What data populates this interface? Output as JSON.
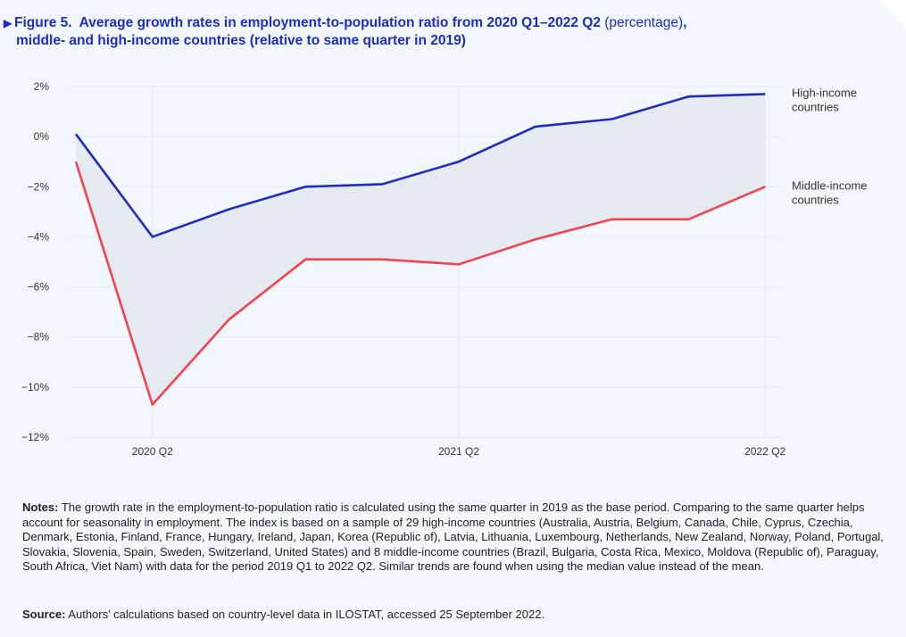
{
  "figure": {
    "number": "Figure 5.",
    "title": "Average growth rates in employment-to-population ratio from 2020 Q1–2022 Q2",
    "unit": "(percentage)",
    "subtitle": "middle- and high-income countries (relative to same quarter in 2019)"
  },
  "chart_data": {
    "type": "line",
    "title": "Average growth rates in employment-to-population ratio from 2020 Q1–2022 Q2 (percentage), middle- and high-income countries (relative to same quarter in 2019)",
    "x": [
      "2020 Q1",
      "2020 Q2",
      "2020 Q3",
      "2020 Q4",
      "2021 Q1",
      "2021 Q2",
      "2021 Q3",
      "2021 Q4",
      "2022 Q1",
      "2022 Q2"
    ],
    "tick_labels": [
      "2020 Q2",
      "2021 Q2",
      "2022 Q2"
    ],
    "tick_indices": [
      1,
      5,
      9
    ],
    "series": [
      {
        "name": "High-income countries",
        "name_lines": [
          "High-income",
          "countries"
        ],
        "color": "#1e2dbe",
        "values": [
          0.1,
          -4.0,
          -2.9,
          -2.0,
          -1.9,
          -1.0,
          0.4,
          0.7,
          1.6,
          1.7
        ]
      },
      {
        "name": "Middle-income countries",
        "name_lines": [
          "Middle-income",
          "countries"
        ],
        "color": "#f5424f",
        "values": [
          -1.0,
          -10.7,
          -7.3,
          -4.9,
          -4.9,
          -5.1,
          -4.1,
          -3.3,
          -3.3,
          -2.0
        ]
      }
    ],
    "ylim": [
      -12,
      2
    ],
    "yticks": [
      2,
      0,
      -2,
      -4,
      -6,
      -8,
      -10,
      -12
    ],
    "ytick_labels": [
      "2%",
      "0%",
      "−2%",
      "−4%",
      "−6%",
      "−8%",
      "−10%",
      "−12%"
    ],
    "band_fill": "#e5eaf0",
    "grid": true,
    "legend": "right, at line ends"
  },
  "notes": {
    "label": "Notes:",
    "text": " The growth rate in the employment-to-population ratio is calculated using the same quarter in 2019 as the base period. Comparing to the same quarter helps account for seasonality in employment. The index is based on a sample of 29 high-income countries (Australia, Austria, Belgium, Canada, Chile, Cyprus, Czechia, Denmark, Estonia, Finland, France, Hungary, Ireland, Japan, Korea (Republic of), Latvia, Lithuania, Luxembourg, Netherlands, New Zealand, Norway, Poland, Portugal, Slovakia, Slovenia, Spain, Sweden, Switzerland, United States) and 8 middle-income countries (Brazil, Bulgaria, Costa Rica, Mexico, Moldova (Republic of), Paraguay, South Africa, Viet Nam) with data for the period 2019 Q1 to 2022 Q2. Similar trends are found when using the median value instead of the mean."
  },
  "source": {
    "label": "Source:",
    "text": " Authors’ calculations based on country-level data in ILOSTAT, accessed 25 September 2022."
  }
}
